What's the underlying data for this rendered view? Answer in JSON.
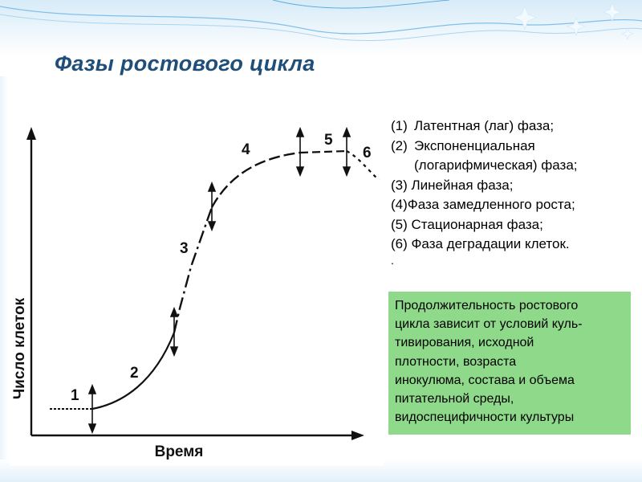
{
  "slide": {
    "title": "Фазы ростового цикла"
  },
  "graph": {
    "y_axis_label": "Число клеток",
    "x_axis_label": "Время",
    "phase_markers": [
      "1",
      "2",
      "3",
      "4",
      "5",
      "6"
    ]
  },
  "phases": {
    "items": [
      {
        "num": "(1)",
        "text": "Латентная (лаг) фаза;"
      },
      {
        "num": "(2)",
        "text": "Экспоненциальная"
      },
      {
        "num": "",
        "text": "(логарифмическая) фаза;"
      }
    ],
    "plain": [
      "(3) Линейная фаза;",
      "(4)Фаза замедленного роста;",
      "(5) Стационарная фаза;",
      "(6) Фаза деградации клеток."
    ],
    "trailing": "."
  },
  "note": {
    "lines": [
      "Продолжительность ростового",
      "цикла зависит от условий куль-",
      "тивирования, исходной",
      "плотности, возраста",
      "инокулюма, состава и объема",
      "питательной среды,",
      "видоспецифичности культуры"
    ],
    "color": "#8fda8a"
  },
  "colors": {
    "title": "#1f4e79",
    "accent": "#3d9bd8"
  }
}
